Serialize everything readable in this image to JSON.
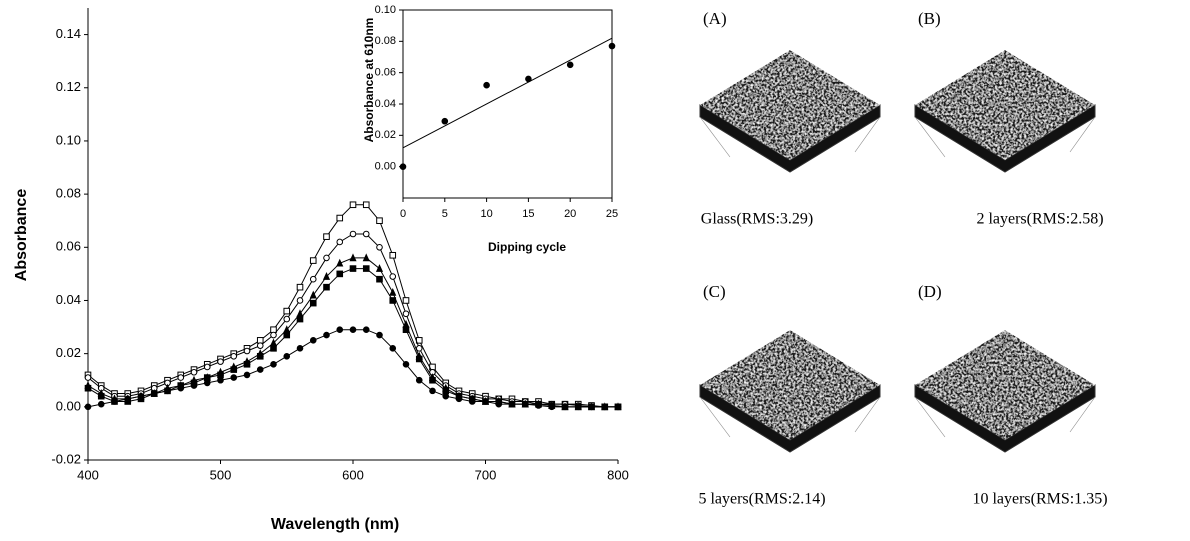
{
  "chart_data": [
    {
      "type": "line",
      "xlabel": "Wavelength (nm)",
      "ylabel": "Absorbance",
      "xlim": [
        400,
        800
      ],
      "xticks": [
        400,
        500,
        600,
        700,
        800
      ],
      "ylim": [
        -0.02,
        0.15
      ],
      "yticks": [
        -0.02,
        {
          "value": 0,
          "label": "0.00"
        },
        0.02,
        0.04,
        0.06,
        0.08,
        {
          "value": 0.1,
          "label": "0.10"
        },
        0.12,
        0.14
      ],
      "x": [
        400,
        410,
        420,
        430,
        440,
        450,
        460,
        470,
        480,
        490,
        500,
        510,
        520,
        530,
        540,
        550,
        560,
        570,
        580,
        590,
        600,
        610,
        620,
        630,
        640,
        650,
        660,
        670,
        680,
        690,
        700,
        710,
        720,
        730,
        740,
        750,
        760,
        770,
        780,
        790,
        800
      ],
      "series": [
        {
          "color": "#000000",
          "marker": "square-open",
          "values": [
            0.012,
            0.008,
            0.005,
            0.005,
            0.006,
            0.008,
            0.01,
            0.012,
            0.014,
            0.016,
            0.018,
            0.02,
            0.022,
            0.025,
            0.029,
            0.036,
            0.045,
            0.055,
            0.064,
            0.071,
            0.076,
            0.076,
            0.07,
            0.057,
            0.04,
            0.025,
            0.015,
            0.009,
            0.006,
            0.005,
            0.004,
            0.003,
            0.003,
            0.002,
            0.002,
            0.001,
            0.001,
            0.001,
            0.0005,
            0,
            0
          ]
        },
        {
          "color": "#000000",
          "marker": "circle-open",
          "values": [
            0.011,
            0.007,
            0.004,
            0.004,
            0.005,
            0.007,
            0.009,
            0.011,
            0.013,
            0.015,
            0.017,
            0.019,
            0.021,
            0.023,
            0.027,
            0.033,
            0.04,
            0.048,
            0.056,
            0.062,
            0.065,
            0.065,
            0.06,
            0.049,
            0.035,
            0.022,
            0.013,
            0.008,
            0.005,
            0.004,
            0.003,
            0.003,
            0.002,
            0.002,
            0.001,
            0.001,
            0.001,
            0.0005,
            0,
            0,
            0
          ]
        },
        {
          "color": "#000000",
          "marker": "triangle-filled",
          "values": [
            0.008,
            0.005,
            0.003,
            0.003,
            0.004,
            0.005,
            0.007,
            0.008,
            0.01,
            0.011,
            0.013,
            0.015,
            0.017,
            0.02,
            0.024,
            0.029,
            0.035,
            0.042,
            0.049,
            0.054,
            0.056,
            0.056,
            0.052,
            0.043,
            0.031,
            0.019,
            0.011,
            0.007,
            0.004,
            0.003,
            0.002,
            0.002,
            0.001,
            0.001,
            0.001,
            0.0005,
            0,
            0,
            0,
            0,
            0
          ]
        },
        {
          "color": "#000000",
          "marker": "square-filled",
          "values": [
            0.007,
            0.004,
            0.002,
            0.002,
            0.003,
            0.005,
            0.006,
            0.008,
            0.009,
            0.011,
            0.012,
            0.014,
            0.016,
            0.019,
            0.022,
            0.027,
            0.033,
            0.039,
            0.045,
            0.05,
            0.052,
            0.052,
            0.048,
            0.04,
            0.029,
            0.018,
            0.01,
            0.006,
            0.004,
            0.003,
            0.002,
            0.002,
            0.001,
            0.001,
            0.001,
            0.0005,
            0,
            0,
            0,
            0,
            0
          ]
        },
        {
          "color": "#000000",
          "marker": "circle-filled",
          "values": [
            0,
            0.001,
            0.002,
            0.003,
            0.004,
            0.005,
            0.006,
            0.007,
            0.008,
            0.009,
            0.01,
            0.011,
            0.012,
            0.014,
            0.016,
            0.019,
            0.022,
            0.025,
            0.027,
            0.029,
            0.029,
            0.029,
            0.027,
            0.022,
            0.016,
            0.01,
            0.006,
            0.004,
            0.003,
            0.002,
            0.002,
            0.001,
            0.001,
            0.001,
            0.0005,
            0,
            0,
            0,
            0,
            0,
            0
          ]
        }
      ]
    },
    {
      "type": "scatter",
      "xlabel": "Dipping cycle",
      "ylabel": "Absorbance at 610nm",
      "xlim": [
        0,
        25
      ],
      "xticks": [
        0,
        5,
        10,
        15,
        20,
        25
      ],
      "ylim": [
        -0.02,
        0.1
      ],
      "yticks": [
        {
          "value": 0,
          "label": "0.00"
        },
        0.02,
        0.04,
        0.06,
        0.08,
        {
          "value": 0.1,
          "label": "0.10"
        }
      ],
      "series": [
        {
          "style": "markers",
          "color": "#000000",
          "x": [
            0,
            5,
            10,
            15,
            20,
            25
          ],
          "values": [
            0,
            0.029,
            0.052,
            0.056,
            0.065,
            0.077
          ]
        },
        {
          "style": "line",
          "color": "#000000",
          "x": [
            0,
            25
          ],
          "values": [
            0.012,
            0.082
          ]
        }
      ]
    }
  ],
  "panels": [
    {
      "label": "(A)",
      "caption": "Glass(RMS:3.29)"
    },
    {
      "label": "(B)",
      "caption": "2 layers(RMS:2.58)"
    },
    {
      "label": "(C)",
      "caption": "5 layers(RMS:2.14)"
    },
    {
      "label": "(D)",
      "caption": "10 layers(RMS:1.35)"
    }
  ]
}
